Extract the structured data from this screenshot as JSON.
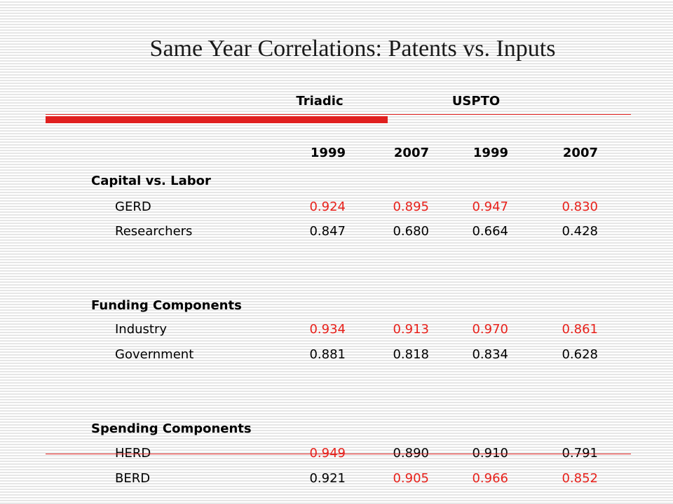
{
  "title": "Same Year Correlations: Patents vs. Inputs",
  "column_groups": [
    "Triadic",
    "USPTO"
  ],
  "years": [
    "1999",
    "2007",
    "1999",
    "2007"
  ],
  "sections": [
    {
      "heading": "Capital vs. Labor",
      "rows": [
        {
          "label": "GERD",
          "values": [
            "0.924",
            "0.895",
            "0.947",
            "0.830"
          ],
          "highlighted": [
            true,
            true,
            true,
            true
          ]
        },
        {
          "label": "Researchers",
          "values": [
            "0.847",
            "0.680",
            "0.664",
            "0.428"
          ],
          "highlighted": [
            false,
            false,
            false,
            false
          ]
        }
      ]
    },
    {
      "heading": "Funding Components",
      "rows": [
        {
          "label": "Industry",
          "values": [
            "0.934",
            "0.913",
            "0.970",
            "0.861"
          ],
          "highlighted": [
            true,
            true,
            true,
            true
          ]
        },
        {
          "label": "Government",
          "values": [
            "0.881",
            "0.818",
            "0.834",
            "0.628"
          ],
          "highlighted": [
            false,
            false,
            false,
            false
          ]
        }
      ]
    },
    {
      "heading": "Spending Components",
      "rows": [
        {
          "label": "HERD",
          "values": [
            "0.949",
            "0.890",
            "0.910",
            "0.791"
          ],
          "highlighted": [
            true,
            false,
            false,
            false
          ]
        },
        {
          "label": "BERD",
          "values": [
            "0.921",
            "0.905",
            "0.966",
            "0.852"
          ],
          "highlighted": [
            false,
            true,
            true,
            true
          ]
        }
      ]
    }
  ],
  "colors": {
    "highlight": "#e8211b",
    "accent_rule": "#e0201f",
    "text": "#000000"
  }
}
